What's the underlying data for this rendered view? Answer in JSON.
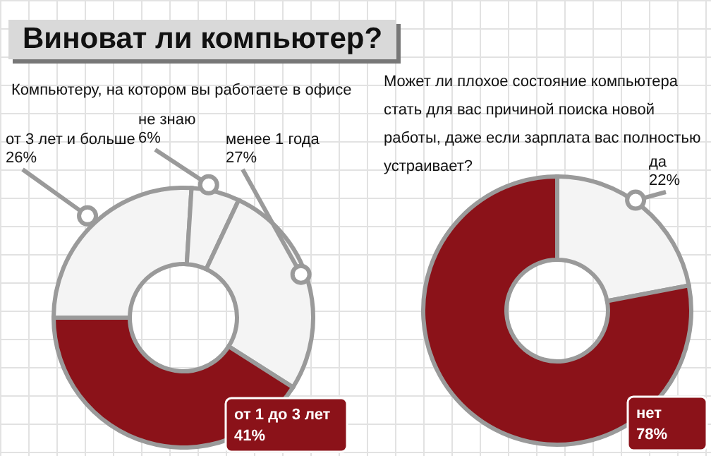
{
  "chart_data": [
    {
      "type": "donut",
      "title": "Виноват ли компьютер?",
      "subtitle": "Компьютеру, на котором вы работаете в офисе",
      "categories": [
        "от 3 лет и больше",
        "не знаю",
        "менее 1 года",
        "от 1 до 3 лет"
      ],
      "values": [
        26,
        6,
        27,
        41
      ],
      "value_labels": [
        "26%",
        "6%",
        "27%",
        "41%"
      ],
      "colors": [
        "#f4f4f4",
        "#f4f4f4",
        "#f4f4f4",
        "#8b1219"
      ],
      "legend": false
    },
    {
      "type": "donut",
      "title": "Может ли плохое состояние компьютера стать для вас причиной поиска новой работы, даже если зарплата вас полностью устраивает?",
      "categories": [
        "да",
        "нет"
      ],
      "values": [
        22,
        78
      ],
      "value_labels": [
        "22%",
        "78%"
      ],
      "colors": [
        "#f4f4f4",
        "#8b1219"
      ],
      "legend": false
    }
  ]
}
